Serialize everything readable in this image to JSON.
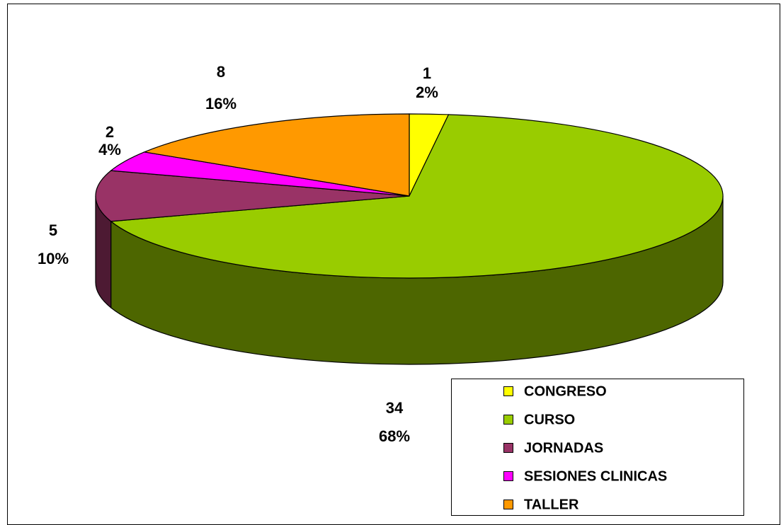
{
  "chart_data": {
    "type": "pie3d",
    "categories": [
      "CONGRESO",
      "CURSO",
      "JORNADAS",
      "SESIONES CLINICAS",
      "TALLER"
    ],
    "values": [
      1,
      34,
      5,
      2,
      8
    ],
    "percentages": [
      2,
      68,
      10,
      4,
      16
    ],
    "percentage_labels": [
      "2%",
      "68%",
      "10%",
      "4%",
      "16%"
    ],
    "colors": [
      "#ffff00",
      "#99cc00",
      "#993366",
      "#ff00ff",
      "#ff9900"
    ],
    "legend": "bottom-right"
  }
}
